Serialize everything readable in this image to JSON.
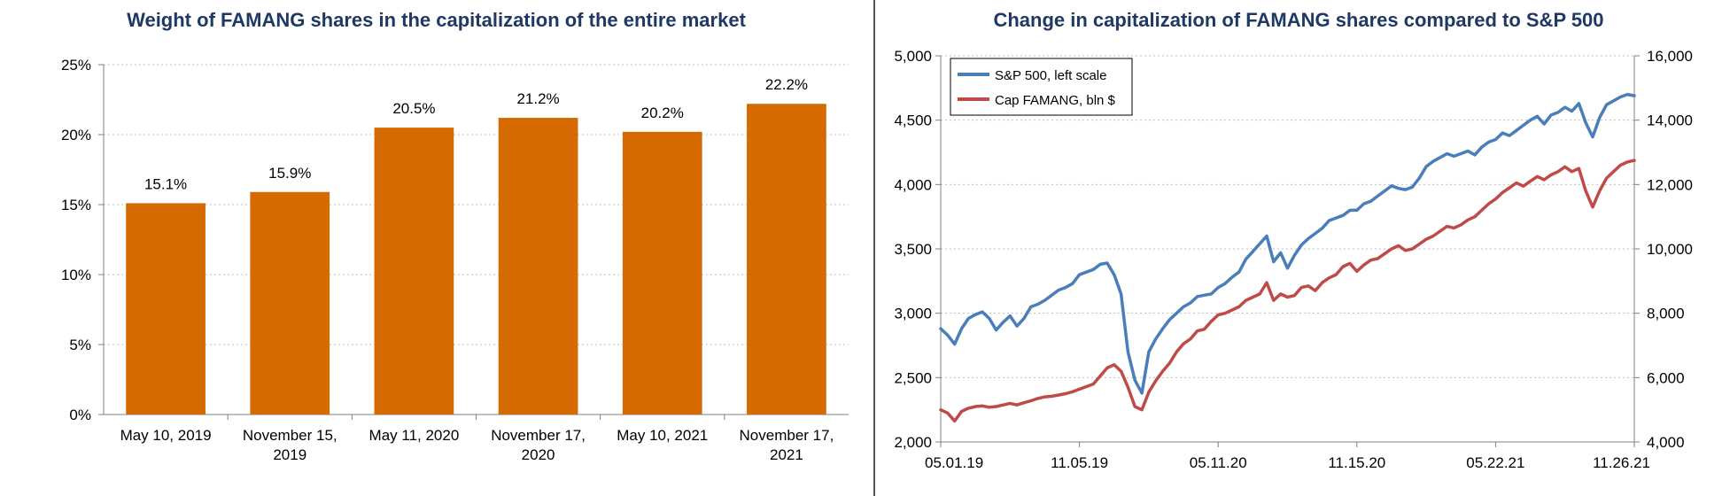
{
  "colors": {
    "bar": "#d46a00",
    "title": "#1f3864",
    "sp500": "#4a7ebb",
    "famang": "#be4b48",
    "axis": "#7f7f7f",
    "grid": "#bfbfbf"
  },
  "chart_data": [
    {
      "type": "bar",
      "title": "Weight of FAMANG shares in the capitalization of the entire market",
      "categories": [
        [
          "May 10, 2019"
        ],
        [
          "November 15,",
          "2019"
        ],
        [
          "May 11, 2020"
        ],
        [
          "November 17,",
          "2020"
        ],
        [
          "May 10, 2021"
        ],
        [
          "November 17,",
          "2021"
        ]
      ],
      "values": [
        15.1,
        15.9,
        20.5,
        21.2,
        20.2,
        22.2
      ],
      "data_labels": [
        "15.1%",
        "15.9%",
        "20.5%",
        "21.2%",
        "20.2%",
        "22.2%"
      ],
      "y_ticks": [
        0,
        5,
        10,
        15,
        20,
        25
      ],
      "y_tick_labels": [
        "0%",
        "5%",
        "10%",
        "15%",
        "20%",
        "25%"
      ],
      "ylim": [
        0,
        25
      ],
      "grid": "horizontal-dotted"
    },
    {
      "type": "line",
      "title": "Change in capitalization of FAMANG shares compared to S&P 500",
      "legend_position": "top-left",
      "x_range": [
        0,
        1
      ],
      "x_ticks": [
        0,
        0.2,
        0.4,
        0.6,
        0.8,
        1
      ],
      "x_tick_labels": [
        "05.01.19",
        "11.05.19",
        "05.11.20",
        "11.15.20",
        "05.22.21",
        "11.26.21"
      ],
      "y_left": {
        "ylim": [
          2000,
          5000
        ],
        "ticks": [
          2000,
          2500,
          3000,
          3500,
          4000,
          4500,
          5000
        ],
        "tick_labels": [
          "2,000",
          "2,500",
          "3,000",
          "3,500",
          "4,000",
          "4,500",
          "5,000"
        ]
      },
      "y_right": {
        "ylim": [
          4000,
          16000
        ],
        "ticks": [
          4000,
          6000,
          8000,
          10000,
          12000,
          14000,
          16000
        ],
        "tick_labels": [
          "4,000",
          "6,000",
          "8,000",
          "10,000",
          "12,000",
          "14,000",
          "16,000"
        ]
      },
      "series": [
        {
          "name": "S&P 500, left scale",
          "axis": "left",
          "x": [
            0,
            0.01,
            0.02,
            0.03,
            0.04,
            0.05,
            0.06,
            0.07,
            0.08,
            0.09,
            0.1,
            0.11,
            0.12,
            0.13,
            0.14,
            0.15,
            0.16,
            0.17,
            0.18,
            0.19,
            0.2,
            0.21,
            0.22,
            0.23,
            0.24,
            0.25,
            0.26,
            0.27,
            0.28,
            0.29,
            0.3,
            0.31,
            0.32,
            0.33,
            0.34,
            0.35,
            0.36,
            0.37,
            0.38,
            0.39,
            0.4,
            0.41,
            0.42,
            0.43,
            0.44,
            0.45,
            0.46,
            0.47,
            0.48,
            0.49,
            0.5,
            0.51,
            0.52,
            0.53,
            0.54,
            0.55,
            0.56,
            0.57,
            0.58,
            0.59,
            0.6,
            0.61,
            0.62,
            0.63,
            0.64,
            0.65,
            0.66,
            0.67,
            0.68,
            0.69,
            0.7,
            0.71,
            0.72,
            0.73,
            0.74,
            0.75,
            0.76,
            0.77,
            0.78,
            0.79,
            0.8,
            0.81,
            0.82,
            0.83,
            0.84,
            0.85,
            0.86,
            0.87,
            0.88,
            0.89,
            0.9,
            0.91,
            0.92,
            0.93,
            0.94,
            0.95,
            0.96,
            0.97,
            0.98,
            0.99,
            1
          ],
          "values": [
            2880,
            2830,
            2760,
            2880,
            2960,
            2990,
            3010,
            2960,
            2870,
            2930,
            2980,
            2900,
            2960,
            3050,
            3070,
            3100,
            3140,
            3180,
            3200,
            3230,
            3300,
            3320,
            3340,
            3380,
            3390,
            3300,
            3150,
            2700,
            2480,
            2380,
            2700,
            2800,
            2880,
            2950,
            3000,
            3050,
            3080,
            3130,
            3140,
            3150,
            3200,
            3230,
            3280,
            3320,
            3420,
            3480,
            3540,
            3600,
            3400,
            3470,
            3350,
            3450,
            3530,
            3580,
            3620,
            3660,
            3720,
            3740,
            3760,
            3800,
            3800,
            3850,
            3870,
            3910,
            3950,
            3990,
            3970,
            3960,
            3980,
            4050,
            4140,
            4180,
            4210,
            4240,
            4220,
            4240,
            4260,
            4230,
            4290,
            4330,
            4350,
            4400,
            4380,
            4420,
            4460,
            4500,
            4530,
            4470,
            4540,
            4560,
            4600,
            4570,
            4630,
            4480,
            4370,
            4520,
            4620,
            4650,
            4680,
            4700,
            4690
          ]
        },
        {
          "name": "Cap FAMANG, bln $",
          "axis": "right",
          "x": [
            0,
            0.01,
            0.02,
            0.03,
            0.04,
            0.05,
            0.06,
            0.07,
            0.08,
            0.09,
            0.1,
            0.11,
            0.12,
            0.13,
            0.14,
            0.15,
            0.16,
            0.17,
            0.18,
            0.19,
            0.2,
            0.21,
            0.22,
            0.23,
            0.24,
            0.25,
            0.26,
            0.27,
            0.28,
            0.29,
            0.3,
            0.31,
            0.32,
            0.33,
            0.34,
            0.35,
            0.36,
            0.37,
            0.38,
            0.39,
            0.4,
            0.41,
            0.42,
            0.43,
            0.44,
            0.45,
            0.46,
            0.47,
            0.48,
            0.49,
            0.5,
            0.51,
            0.52,
            0.53,
            0.54,
            0.55,
            0.56,
            0.57,
            0.58,
            0.59,
            0.6,
            0.61,
            0.62,
            0.63,
            0.64,
            0.65,
            0.66,
            0.67,
            0.68,
            0.69,
            0.7,
            0.71,
            0.72,
            0.73,
            0.74,
            0.75,
            0.76,
            0.77,
            0.78,
            0.79,
            0.8,
            0.81,
            0.82,
            0.83,
            0.84,
            0.85,
            0.86,
            0.87,
            0.88,
            0.89,
            0.9,
            0.91,
            0.92,
            0.93,
            0.94,
            0.95,
            0.96,
            0.97,
            0.98,
            0.99,
            1
          ],
          "values": [
            5000,
            4900,
            4650,
            4950,
            5050,
            5100,
            5120,
            5080,
            5100,
            5150,
            5200,
            5150,
            5220,
            5280,
            5350,
            5400,
            5420,
            5460,
            5500,
            5560,
            5640,
            5720,
            5800,
            6050,
            6300,
            6400,
            6200,
            5700,
            5100,
            5000,
            5550,
            5900,
            6200,
            6450,
            6800,
            7050,
            7200,
            7450,
            7500,
            7750,
            7950,
            8000,
            8100,
            8200,
            8400,
            8500,
            8600,
            8950,
            8400,
            8600,
            8500,
            8550,
            8800,
            8850,
            8700,
            8950,
            9100,
            9200,
            9450,
            9550,
            9300,
            9500,
            9650,
            9700,
            9850,
            10000,
            10100,
            9950,
            10000,
            10150,
            10300,
            10400,
            10550,
            10700,
            10650,
            10750,
            10900,
            11000,
            11200,
            11400,
            11550,
            11750,
            11900,
            12050,
            11950,
            12100,
            12250,
            12150,
            12300,
            12400,
            12550,
            12400,
            12500,
            11800,
            11300,
            11800,
            12200,
            12400,
            12600,
            12700,
            12750
          ]
        }
      ]
    }
  ]
}
